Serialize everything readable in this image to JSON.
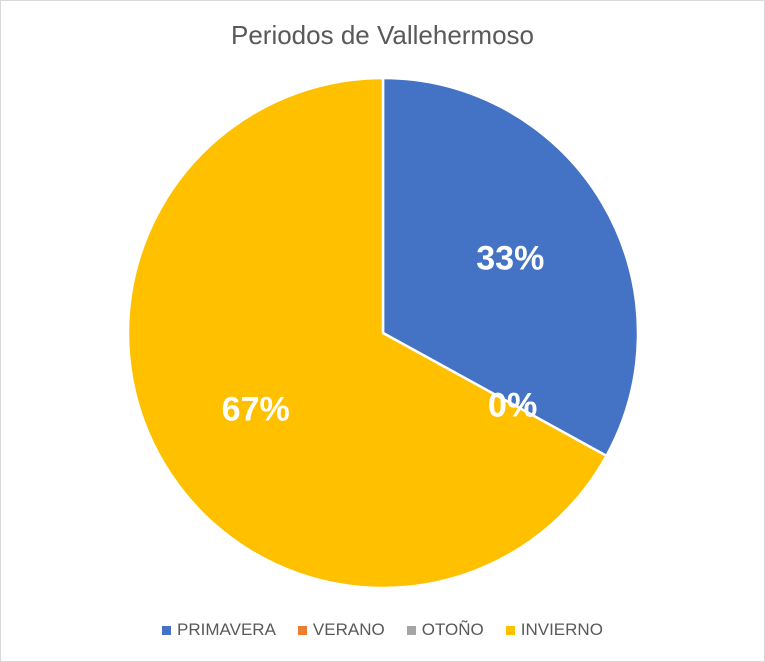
{
  "chart_data": {
    "type": "pie",
    "title": "Periodos de Vallehermoso",
    "categories": [
      "PRIMAVERA",
      "VERANO",
      "OTOÑO",
      "INVIERNO"
    ],
    "values": [
      33,
      0,
      0,
      67
    ],
    "labels": [
      "33%",
      "0%",
      "0%",
      "67%"
    ],
    "colors": [
      "#4472C4",
      "#ED7D31",
      "#A5A5A5",
      "#FFC000"
    ],
    "legend_position": "bottom",
    "start_angle_deg": 0,
    "direction": "clockwise"
  }
}
